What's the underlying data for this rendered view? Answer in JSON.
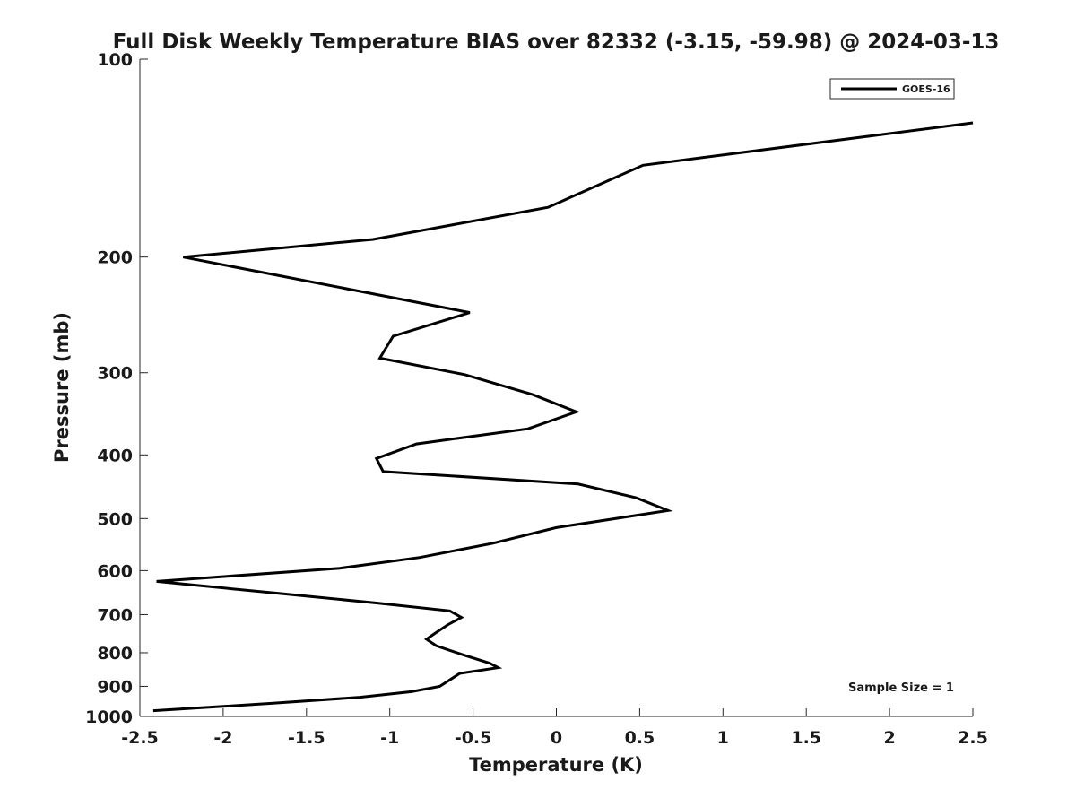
{
  "chart_data": {
    "type": "line",
    "title": "Full Disk Weekly Temperature BIAS over 82332 (-3.15, -59.98) @ 2024-03-13",
    "xlabel": "Temperature (K)",
    "ylabel": "Pressure (mb)",
    "xlim": [
      -2.5,
      2.5
    ],
    "ylim": [
      100,
      1000
    ],
    "y_scale": "log",
    "y_reversed": true,
    "x_ticks": [
      -2.5,
      -2,
      -1.5,
      -1,
      -0.5,
      0,
      0.5,
      1,
      1.5,
      2,
      2.5
    ],
    "x_tick_labels": [
      "-2.5",
      "-2",
      "-1.5",
      "-1",
      "-0.5",
      "0",
      "0.5",
      "1",
      "1.5",
      "2",
      "2.5"
    ],
    "y_ticks": [
      100,
      200,
      300,
      400,
      500,
      600,
      700,
      800,
      900,
      1000
    ],
    "y_tick_labels": [
      "100",
      "200",
      "300",
      "400",
      "500",
      "600",
      "700",
      "800",
      "900",
      "1000"
    ],
    "legend": {
      "position": "top-right",
      "entries": [
        "GOES-16"
      ]
    },
    "annotation": "Sample Size = 1",
    "color": "#000000",
    "series": [
      {
        "name": "GOES-16",
        "points": [
          {
            "x": 2.5,
            "y": 125
          },
          {
            "x": 0.52,
            "y": 145
          },
          {
            "x": -0.05,
            "y": 168
          },
          {
            "x": -1.1,
            "y": 188
          },
          {
            "x": -2.24,
            "y": 200
          },
          {
            "x": -0.52,
            "y": 243
          },
          {
            "x": -0.98,
            "y": 264
          },
          {
            "x": -1.06,
            "y": 285
          },
          {
            "x": -0.55,
            "y": 302
          },
          {
            "x": -0.14,
            "y": 324
          },
          {
            "x": 0.12,
            "y": 344
          },
          {
            "x": -0.17,
            "y": 365
          },
          {
            "x": -0.84,
            "y": 385
          },
          {
            "x": -1.08,
            "y": 405
          },
          {
            "x": -1.04,
            "y": 424
          },
          {
            "x": 0.13,
            "y": 443
          },
          {
            "x": 0.48,
            "y": 465
          },
          {
            "x": 0.67,
            "y": 486
          },
          {
            "x": 0.0,
            "y": 516
          },
          {
            "x": -0.38,
            "y": 545
          },
          {
            "x": -0.82,
            "y": 573
          },
          {
            "x": -1.3,
            "y": 595
          },
          {
            "x": -2.4,
            "y": 623
          },
          {
            "x": -1.66,
            "y": 650
          },
          {
            "x": -1.08,
            "y": 672
          },
          {
            "x": -0.64,
            "y": 691
          },
          {
            "x": -0.57,
            "y": 707
          },
          {
            "x": -0.65,
            "y": 725
          },
          {
            "x": -0.72,
            "y": 745
          },
          {
            "x": -0.78,
            "y": 763
          },
          {
            "x": -0.72,
            "y": 781
          },
          {
            "x": -0.56,
            "y": 806
          },
          {
            "x": -0.4,
            "y": 830
          },
          {
            "x": -0.35,
            "y": 843
          },
          {
            "x": -0.58,
            "y": 860
          },
          {
            "x": -0.7,
            "y": 900
          },
          {
            "x": -0.87,
            "y": 917
          },
          {
            "x": -1.18,
            "y": 935
          },
          {
            "x": -1.7,
            "y": 955
          },
          {
            "x": -2.42,
            "y": 980
          }
        ]
      }
    ]
  }
}
